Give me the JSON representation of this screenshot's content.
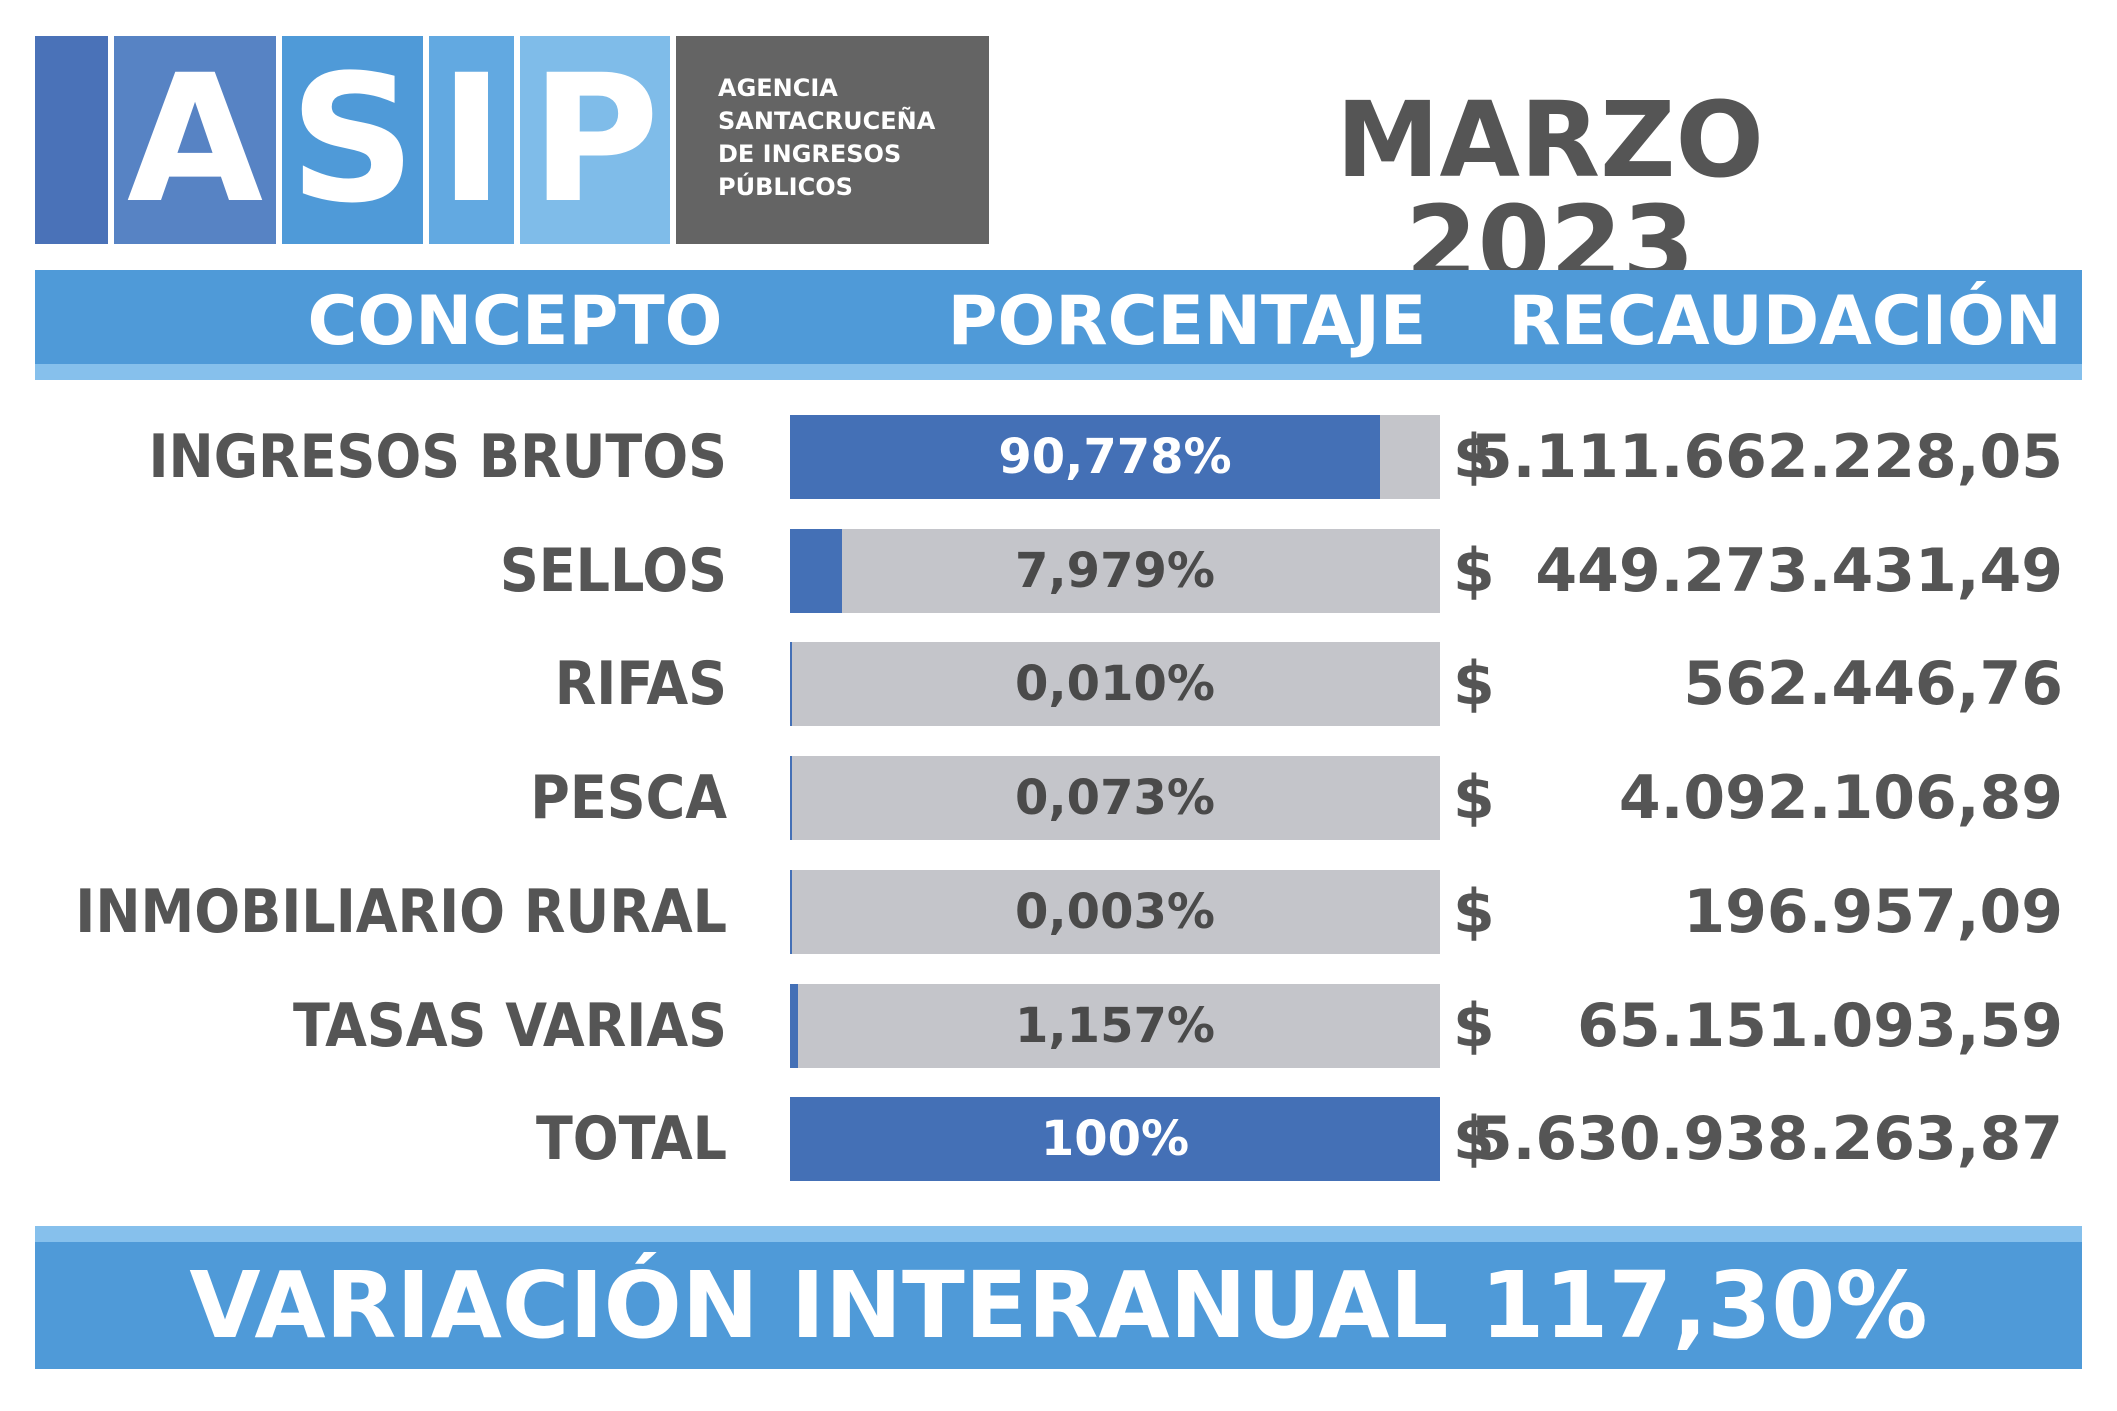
{
  "logo": {
    "letters": [
      "A",
      "S",
      "I",
      "P"
    ],
    "agency_lines": [
      "AGENCIA",
      "SANTACRUCEÑA",
      "DE INGRESOS",
      "PÚBLICOS"
    ]
  },
  "period": "MARZO 2023",
  "colors": {
    "header_blue": "#4f9ad8",
    "bar_fill": "#4470b6",
    "bar_track": "#c4c5ca",
    "text_gray": "#555555"
  },
  "chart_data": {
    "type": "bar",
    "headers": [
      "CONCEPTO",
      "PORCENTAJE",
      "RECAUDACIÓN"
    ],
    "categories": [
      "INGRESOS BRUTOS",
      "SELLOS",
      "RIFAS",
      "PESCA",
      "INMOBILIARIO RURAL",
      "TASAS VARIAS",
      "TOTAL"
    ],
    "values": [
      90.778,
      7.979,
      0.01,
      0.073,
      0.003,
      1.157,
      100
    ],
    "percent_labels": [
      "90,778%",
      "7,979%",
      "0,010%",
      "0,073%",
      "0,003%",
      "1,157%",
      "100%"
    ],
    "currency": "$",
    "amounts": [
      "5.111.662.228,05",
      "449.273.431,49",
      "562.446,76",
      "4.092.106,89",
      "196.957,09",
      "65.151.093,59",
      "5.630.938.263,87"
    ],
    "xlim": [
      0,
      100
    ]
  },
  "footer": "VARIACIÓN INTERANUAL 117,30%"
}
